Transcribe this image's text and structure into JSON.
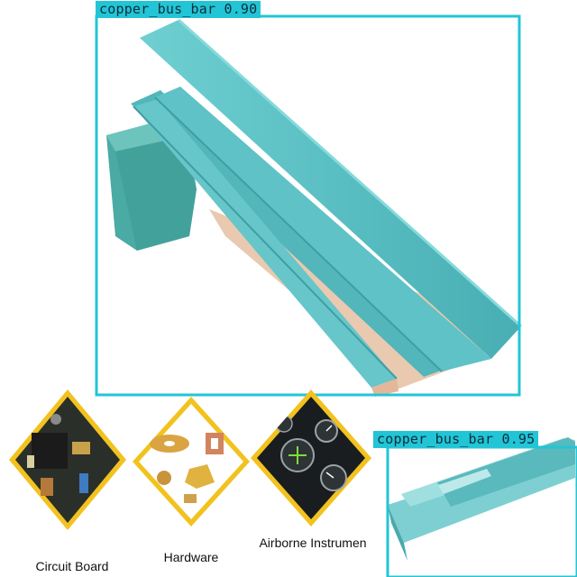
{
  "detections": [
    {
      "label": "copper_bus_bar",
      "score": "0.90",
      "text": "copper_bus_bar 0.90"
    },
    {
      "label": "copper_bus_bar",
      "score": "0.95",
      "text": "copper_bus_bar 0.95"
    }
  ],
  "categories": [
    {
      "name": "Circuit Board"
    },
    {
      "name": "Hardware"
    },
    {
      "name": "Airborne Instrumen"
    }
  ],
  "colors": {
    "box": "#22c5d6",
    "bar_fill": "#5fc0c4",
    "bar_shade": "#46a9ae",
    "block_fill": "#4aaaa4",
    "diamond_border": "#f2c21e"
  },
  "icons": {
    "circuit": "circuit-board-photo",
    "hardware": "hardware-photo",
    "instruments": "airborne-instruments-photo"
  }
}
